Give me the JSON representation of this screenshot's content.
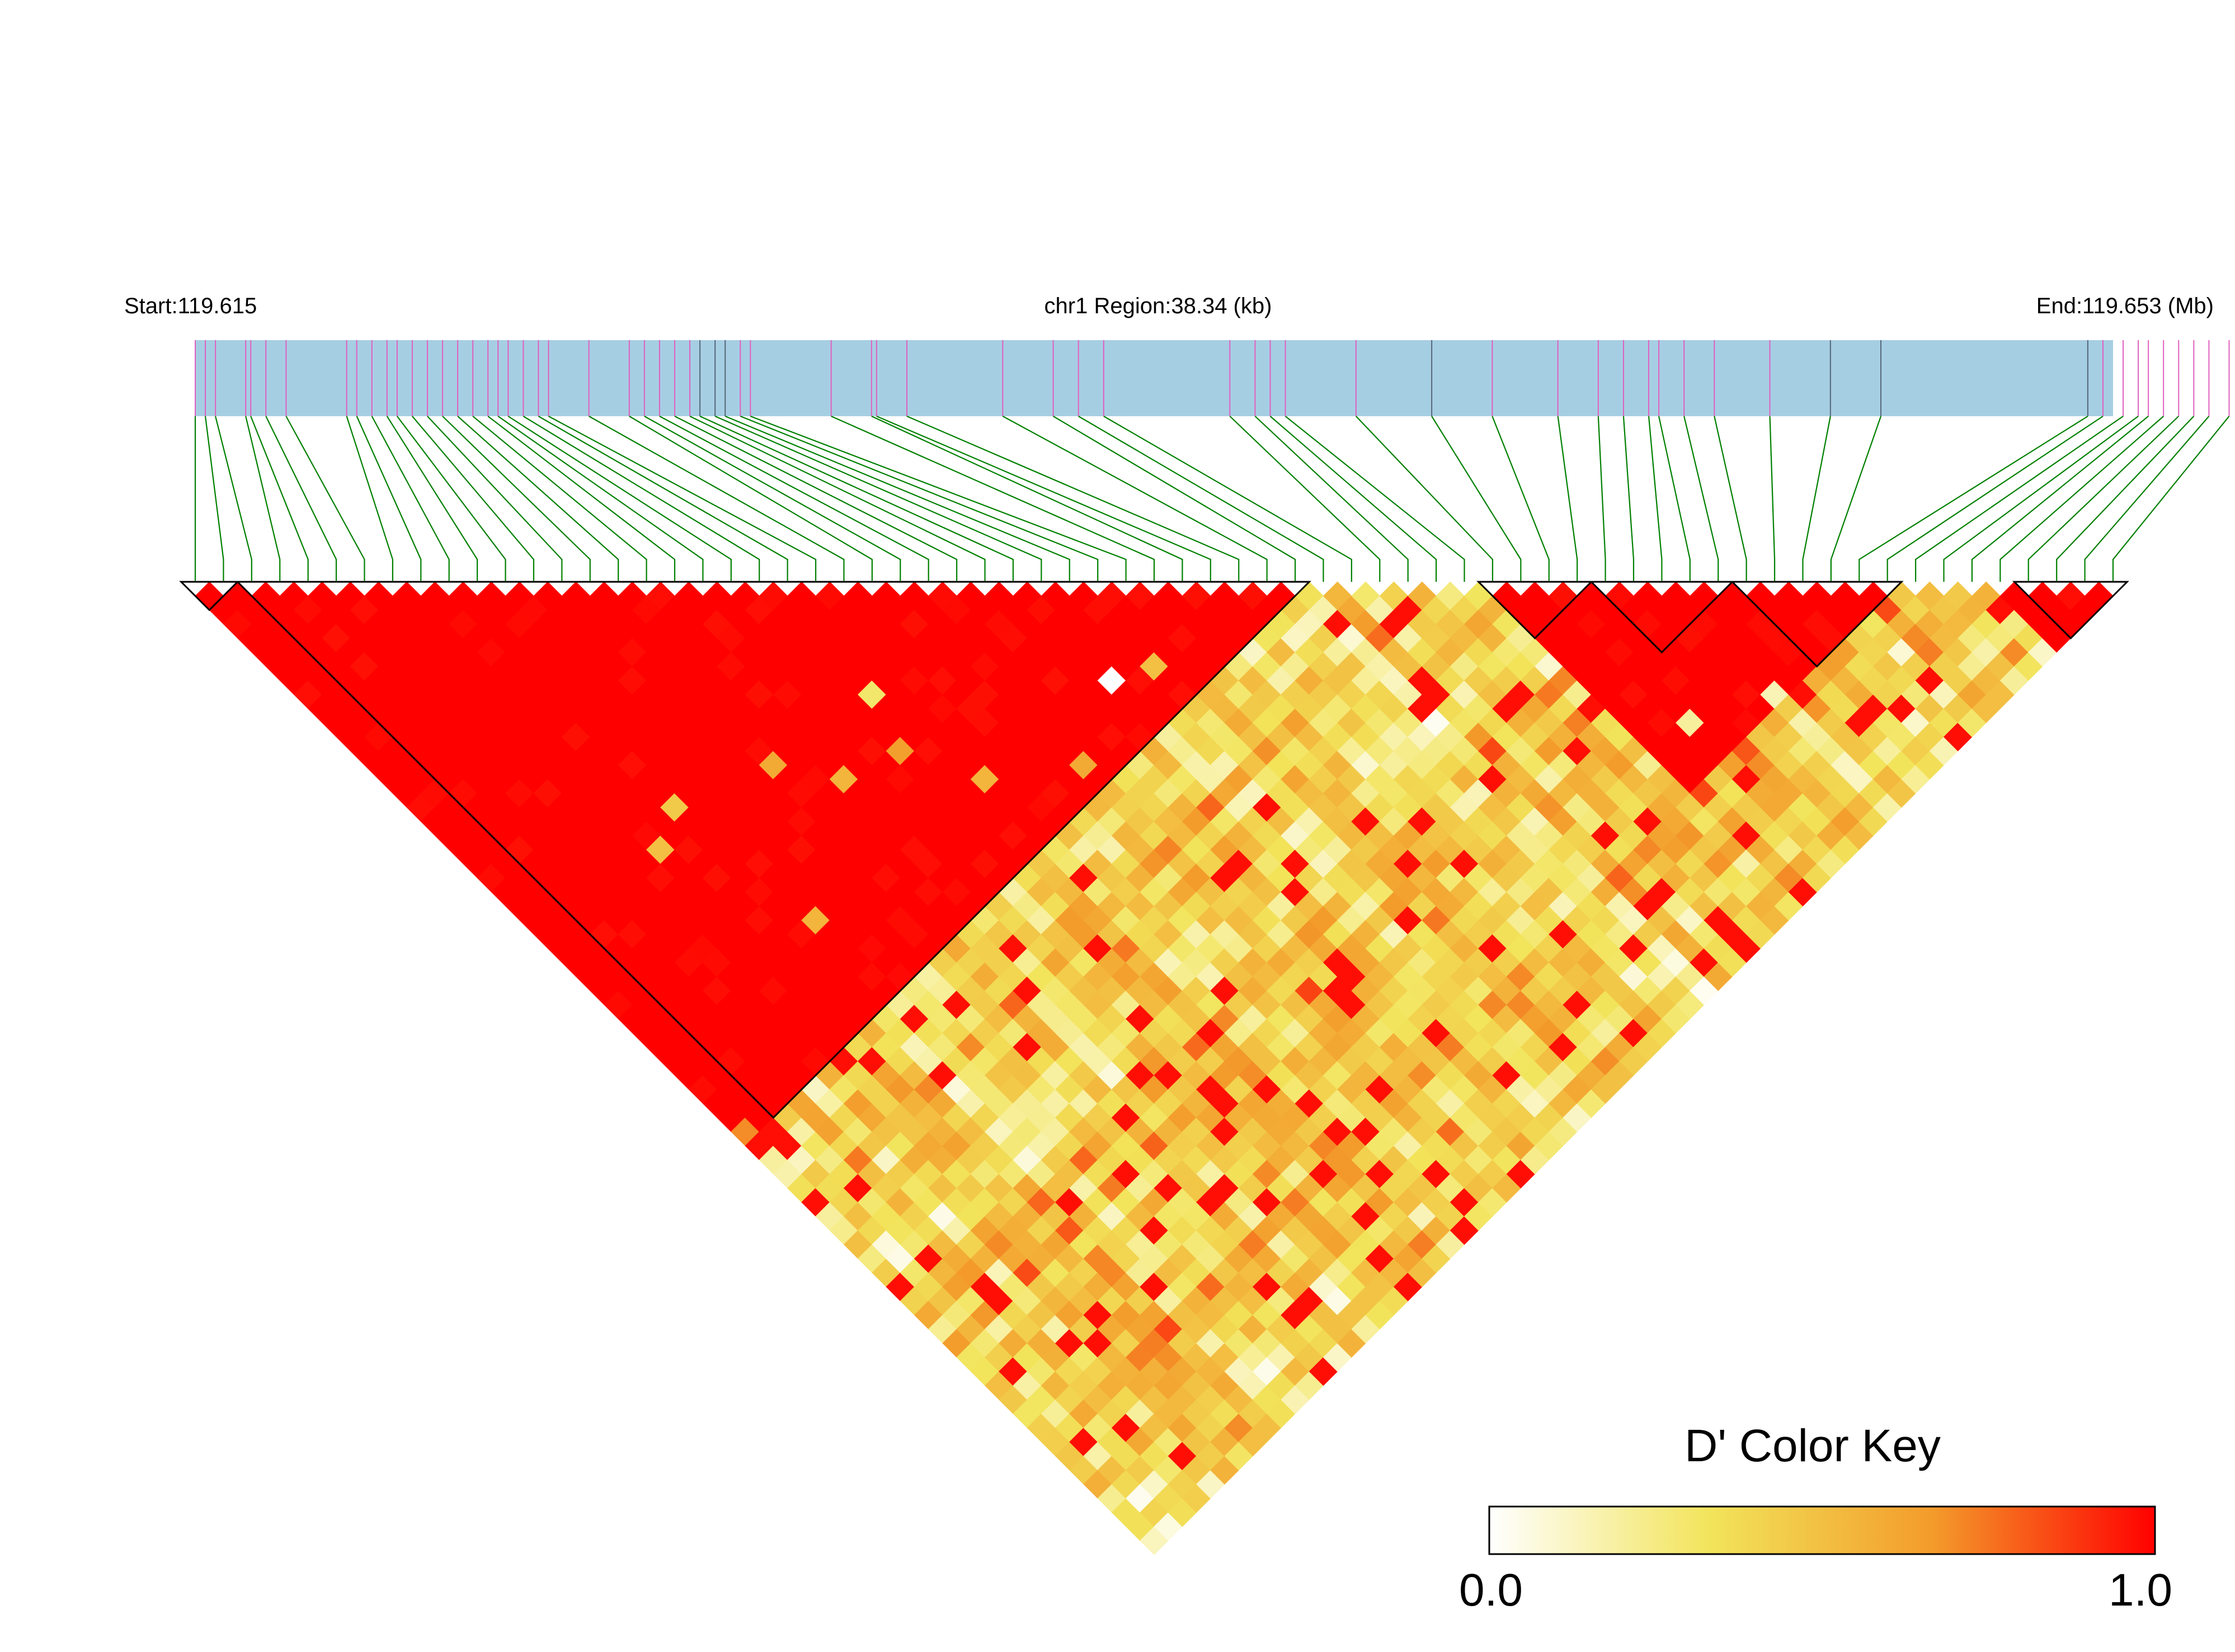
{
  "header": {
    "start_label": "Start:119.615",
    "region_label": "chr1 Region:38.34 (kb)",
    "end_label": "End:119.653 (Mb)"
  },
  "colors": {
    "track": "#a6cee3",
    "tick_pink": "#e060c0",
    "tick_gray": "#556677",
    "connector": "#008000",
    "block_outline": "#000000"
  },
  "chart_data": {
    "type": "heatmap",
    "title": "",
    "region": {
      "chromosome": "chr1",
      "start_mb": 119.615,
      "end_mb": 119.653,
      "length_kb": 38.34
    },
    "snp_count": 69,
    "snp_positions_mb": [
      119.615,
      119.6152,
      119.6154,
      119.616,
      119.6161,
      119.6164,
      119.6168,
      119.618,
      119.6182,
      119.6185,
      119.6188,
      119.619,
      119.6193,
      119.6196,
      119.6199,
      119.6202,
      119.6205,
      119.6208,
      119.621,
      119.6212,
      119.6215,
      119.6218,
      119.622,
      119.6228,
      119.6236,
      119.6239,
      119.6242,
      119.6245,
      119.6248,
      119.625,
      119.6253,
      119.6255,
      119.6258,
      119.626,
      119.6276,
      119.6284,
      119.6285,
      119.6291,
      119.631,
      119.632,
      119.6325,
      119.633,
      119.6355,
      119.636,
      119.6363,
      119.6366,
      119.638,
      119.6395,
      119.6407,
      119.642,
      119.6428,
      119.6433,
      119.6438,
      119.644,
      119.6445,
      119.6451,
      119.6462,
      119.6474,
      119.6484,
      119.6525,
      119.6528,
      119.6532,
      119.6535,
      119.6537,
      119.654,
      119.6543,
      119.6546,
      119.6549,
      119.6553
    ],
    "blocks": [
      [
        0,
        1
      ],
      [
        2,
        39
      ],
      [
        46,
        49
      ],
      [
        50,
        54
      ],
      [
        55,
        60
      ],
      [
        65,
        68
      ]
    ],
    "strong_sets": [
      [
        0,
        39
      ],
      [
        46,
        60
      ],
      [
        64,
        68
      ]
    ],
    "sparse_cells": [
      [
        16,
        30,
        0.55
      ],
      [
        7,
        26,
        0.5
      ],
      [
        10,
        34,
        0.55
      ],
      [
        14,
        27,
        0.6
      ],
      [
        19,
        31,
        0.65
      ],
      [
        21,
        35,
        0.55
      ],
      [
        29,
        36,
        0.0
      ],
      [
        25,
        38,
        0.6
      ],
      [
        31,
        37,
        0.5
      ],
      [
        9,
        25,
        0.45
      ],
      [
        20,
        28,
        0.3
      ],
      [
        0,
        39,
        0.7
      ],
      [
        45,
        51,
        0.1
      ],
      [
        48,
        58,
        0.2
      ],
      [
        52,
        60,
        0.15
      ]
    ],
    "color_key": {
      "title": "D' Color Key",
      "min_label": "0.0",
      "max_label": "1.0",
      "stops": [
        "#ffffff",
        "#f2e45a",
        "#f39b2b",
        "#ff0000"
      ]
    }
  }
}
